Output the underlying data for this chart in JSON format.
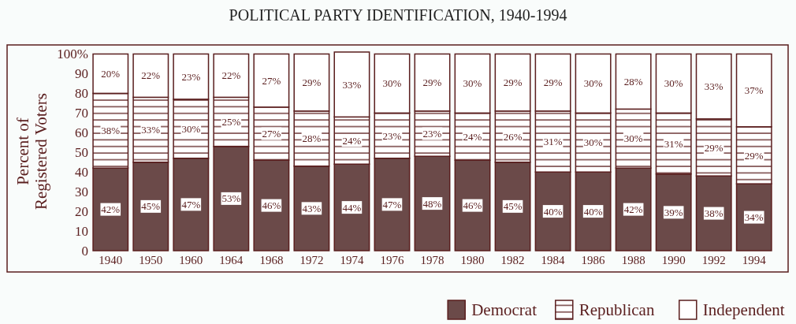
{
  "chart_data": {
    "type": "bar",
    "title": "POLITICAL PARTY IDENTIFICATION, 1940-1994",
    "ylabel": "Percent of\nRegistered Voters",
    "categories": [
      "1940",
      "1950",
      "1960",
      "1964",
      "1968",
      "1972",
      "1974",
      "1976",
      "1978",
      "1980",
      "1982",
      "1984",
      "1986",
      "1988",
      "1990",
      "1992",
      "1994"
    ],
    "stacked": true,
    "ylim": [
      0,
      101
    ],
    "yticks": [
      0,
      10,
      20,
      30,
      40,
      50,
      60,
      70,
      80,
      90,
      {
        "value": 100,
        "label": "100%"
      }
    ],
    "legend": "bottom right",
    "series": [
      {
        "name": "Democrat",
        "color": "#6b4a49",
        "values": [
          42,
          45,
          47,
          53,
          46,
          43,
          44,
          47,
          48,
          46,
          45,
          40,
          40,
          42,
          39,
          38,
          34
        ],
        "value_labels": [
          "42%",
          "45%",
          "47%",
          "53%",
          "46%",
          "43%",
          "44%",
          "47%",
          "48%",
          "46%",
          "45%",
          "40%",
          "40%",
          "42%",
          "39%",
          "38%",
          "34%"
        ]
      },
      {
        "name": "Republican",
        "color": "#5a1e1e",
        "values": [
          38,
          33,
          30,
          25,
          27,
          28,
          24,
          23,
          23,
          24,
          26,
          31,
          30,
          30,
          31,
          29,
          29
        ],
        "value_labels": [
          "38%",
          "33%",
          "30%",
          "25%",
          "27%",
          "28%",
          "24%",
          "23%",
          "23%",
          "24%",
          "26%",
          "31%",
          "30%",
          "30%",
          "31%",
          "29%",
          "29%"
        ]
      },
      {
        "name": "Independent",
        "color": "#ffffff",
        "values": [
          20,
          22,
          23,
          22,
          27,
          29,
          33,
          30,
          29,
          30,
          29,
          29,
          30,
          28,
          30,
          33,
          37
        ],
        "value_labels": [
          "20%",
          "22%",
          "23%",
          "22%",
          "27%",
          "29%",
          "33%",
          "30%",
          "29%",
          "30%",
          "29%",
          "29%",
          "30%",
          "28%",
          "30%",
          "33%",
          "37%"
        ]
      }
    ]
  }
}
